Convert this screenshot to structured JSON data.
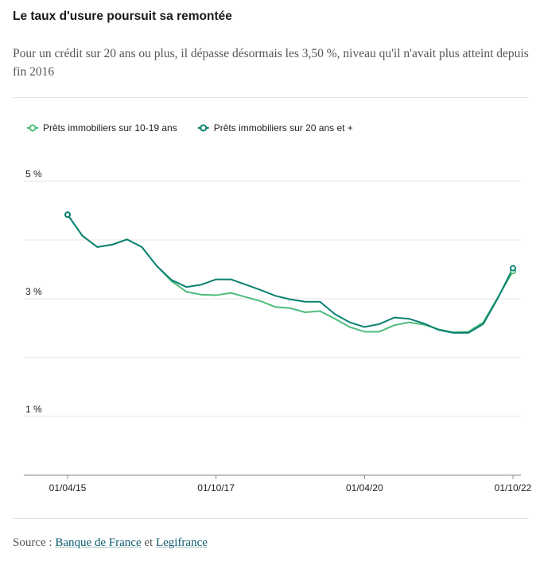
{
  "chart_data": {
    "type": "line",
    "title": "Le taux d'usure poursuit sa remontée",
    "subtitle": "Pour un crédit sur 20 ans ou plus, il dépasse désormais les 3,50 %, niveau qu'il n'avait plus atteint depuis fin 2016",
    "categories": [
      "01/04/15",
      null,
      null,
      null,
      null,
      null,
      null,
      null,
      null,
      null,
      "01/10/17",
      null,
      null,
      null,
      null,
      null,
      null,
      null,
      null,
      null,
      "01/04/20",
      null,
      null,
      null,
      null,
      null,
      null,
      null,
      null,
      null,
      "01/10/22"
    ],
    "series": [
      {
        "name": "Prêts immobiliers sur 10-19 ans",
        "color": "#4cbd7a",
        "values": [
          4.43,
          4.07,
          3.88,
          3.92,
          4.01,
          3.88,
          3.56,
          3.3,
          3.12,
          3.07,
          3.06,
          3.1,
          3.03,
          2.96,
          2.86,
          2.84,
          2.77,
          2.79,
          2.66,
          2.52,
          2.44,
          2.44,
          2.55,
          2.6,
          2.56,
          2.48,
          2.43,
          2.44,
          2.6,
          3.03,
          3.47
        ]
      },
      {
        "name": "Prêts immobiliers sur 20 ans et +",
        "color": "#0a8072",
        "values": [
          4.43,
          4.07,
          3.88,
          3.92,
          4.01,
          3.88,
          3.56,
          3.32,
          3.2,
          3.24,
          3.33,
          3.33,
          3.24,
          3.15,
          3.05,
          2.99,
          2.95,
          2.95,
          2.74,
          2.6,
          2.52,
          2.57,
          2.68,
          2.66,
          2.58,
          2.47,
          2.42,
          2.42,
          2.57,
          3.02,
          3.52
        ]
      }
    ],
    "ylim": [
      0,
      5
    ],
    "yticks": [
      {
        "value": 1,
        "label": "1 %"
      },
      {
        "value": 3,
        "label": "3 %"
      },
      {
        "value": 5,
        "label": "5 %"
      }
    ],
    "minor_yticks": [
      2,
      4
    ],
    "grid": true,
    "legend": "top-left"
  },
  "source": {
    "prefix": "Source :",
    "links": [
      "Banque de France",
      "Legifrance"
    ],
    "conjunction": "et"
  }
}
